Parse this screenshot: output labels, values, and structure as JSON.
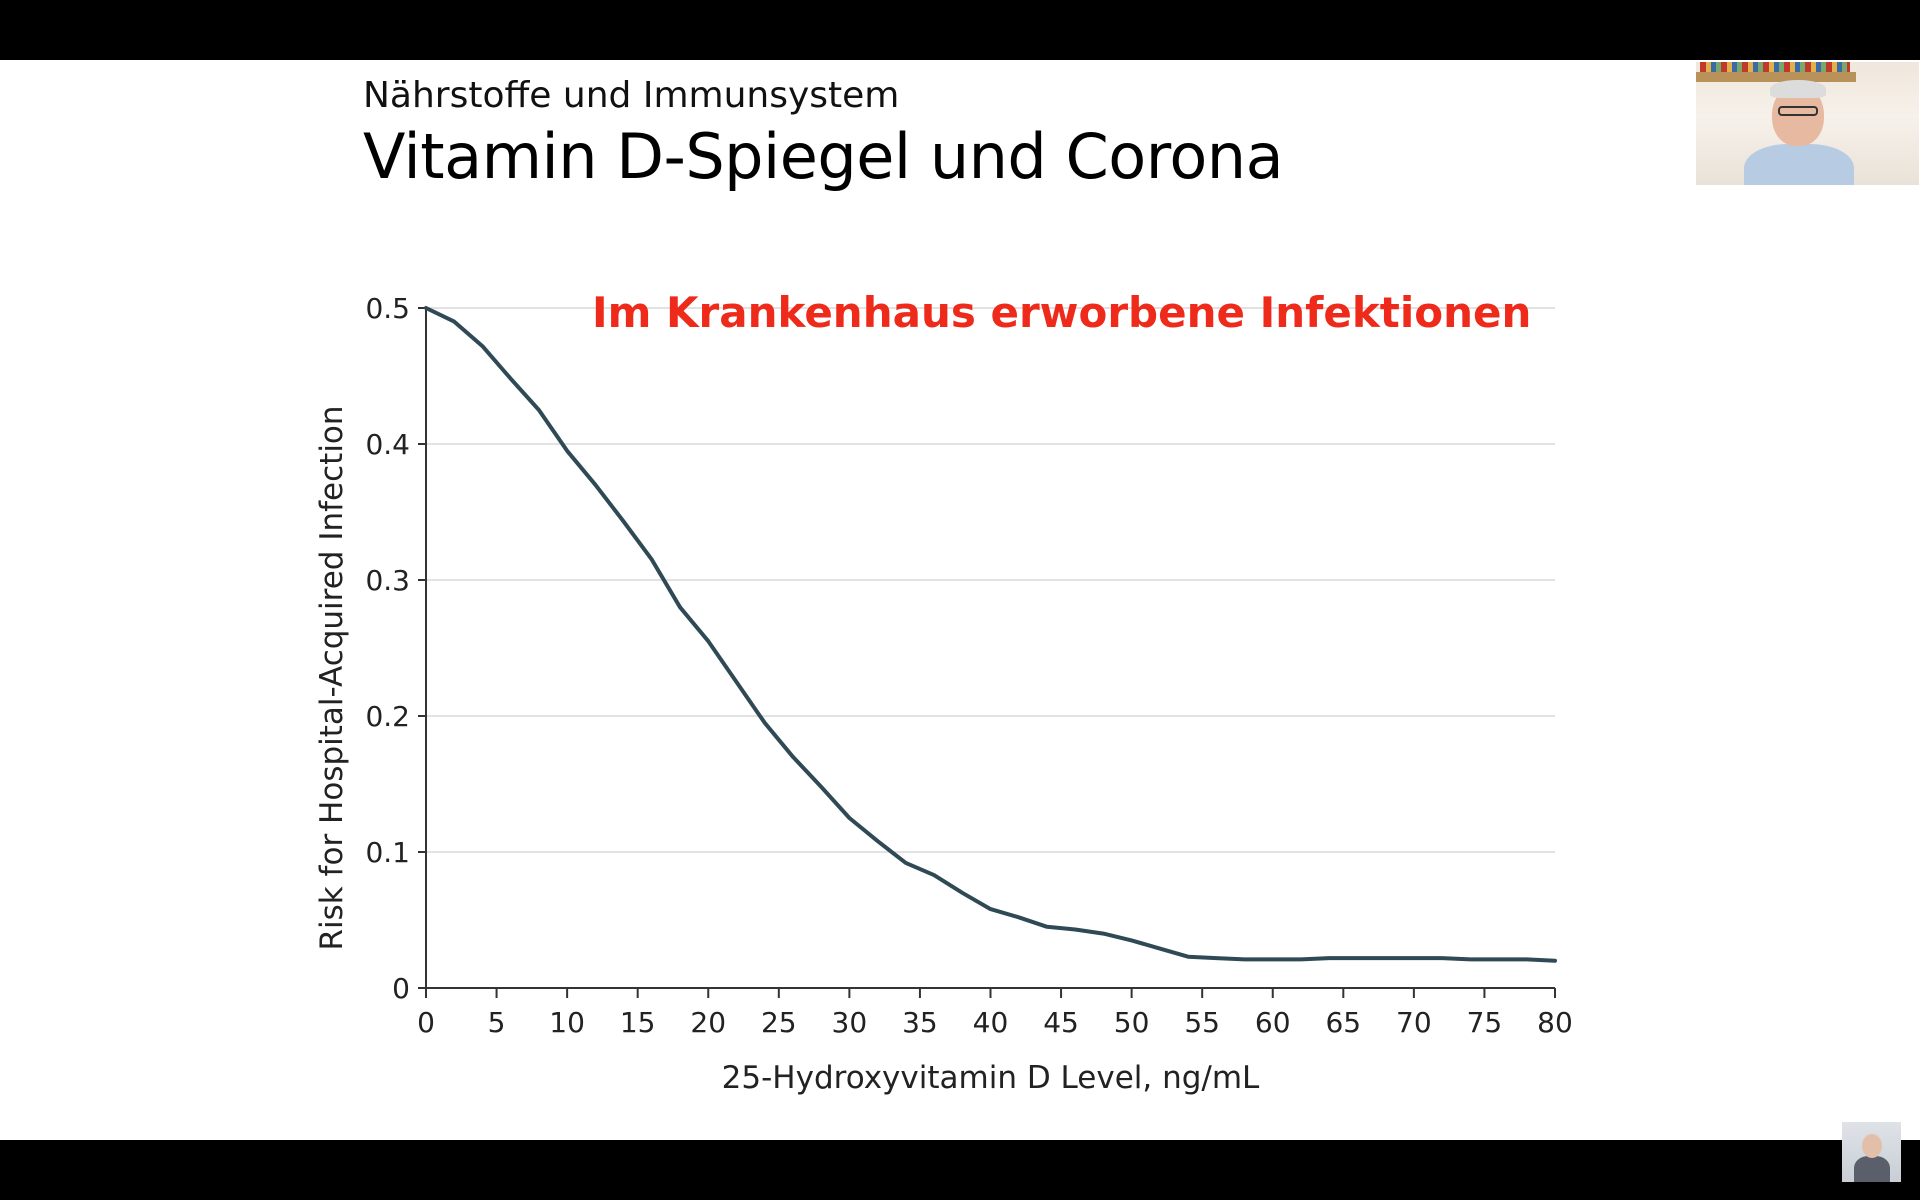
{
  "slide": {
    "subtitle": "Nährstoffe und Immunsystem",
    "title": "Vitamin D-Spiegel und Corona",
    "annotation": "Im Krankenhaus erworbene Infektionen"
  },
  "colors": {
    "line": "#2f4a55",
    "grid": "#d9d9d9",
    "axis": "#333333",
    "annotation": "#ee2a1b"
  },
  "chart_data": {
    "type": "line",
    "xlabel": "25-Hydroxyvitamin D Level, ng/mL",
    "ylabel": "Risk for Hospital-Acquired Infection",
    "xlim": [
      0,
      80
    ],
    "ylim": [
      0,
      0.5
    ],
    "xticks": [
      "0",
      "5",
      "10",
      "15",
      "20",
      "25",
      "30",
      "35",
      "40",
      "45",
      "50",
      "55",
      "60",
      "65",
      "70",
      "75",
      "80"
    ],
    "yticks": [
      "0",
      "0.1",
      "0.2",
      "0.3",
      "0.4",
      "0.5"
    ],
    "grid": true,
    "series": [
      {
        "x": [
          0,
          2,
          4,
          6,
          8,
          10,
          12,
          14,
          16,
          18,
          20,
          22,
          24,
          26,
          28,
          30,
          32,
          34,
          36,
          38,
          40,
          42,
          44,
          46,
          48,
          50,
          52,
          54,
          56,
          58,
          60,
          62,
          64,
          66,
          68,
          70,
          72,
          74,
          76,
          78,
          80
        ],
        "values": [
          0.5,
          0.49,
          0.472,
          0.448,
          0.425,
          0.395,
          0.37,
          0.343,
          0.315,
          0.28,
          0.255,
          0.225,
          0.195,
          0.17,
          0.148,
          0.125,
          0.108,
          0.092,
          0.083,
          0.07,
          0.058,
          0.052,
          0.045,
          0.043,
          0.04,
          0.035,
          0.029,
          0.023,
          0.022,
          0.021,
          0.021,
          0.021,
          0.022,
          0.022,
          0.022,
          0.022,
          0.022,
          0.021,
          0.021,
          0.021,
          0.02
        ]
      }
    ]
  }
}
